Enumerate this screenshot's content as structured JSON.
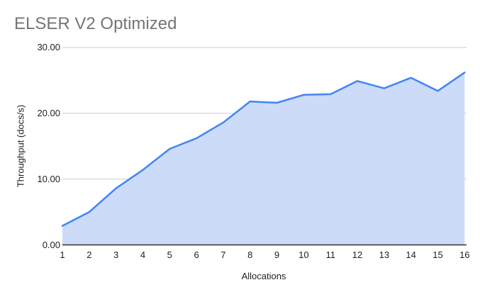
{
  "title": "ELSER V2 Optimized",
  "colors": {
    "line": "#4285f4",
    "area_fill": "#cbdbf8",
    "gridline": "#cccccc",
    "axis_line": "#333333",
    "title_text": "#757575",
    "tick_text": "#202124"
  },
  "chart_data": {
    "type": "area",
    "title": "ELSER V2 Optimized",
    "xlabel": "Allocations",
    "ylabel": "Throughput (docs/s)",
    "x": [
      1,
      2,
      3,
      4,
      5,
      6,
      7,
      8,
      9,
      10,
      11,
      12,
      13,
      14,
      15,
      16
    ],
    "x_tick_labels": [
      "1",
      "2",
      "3",
      "4",
      "5",
      "6",
      "7",
      "8",
      "9",
      "10",
      "11",
      "12",
      "13",
      "14",
      "15",
      "16"
    ],
    "series": [
      {
        "name": "Throughput (docs/s)",
        "values": [
          2.9,
          5.0,
          8.6,
          11.4,
          14.6,
          16.2,
          18.6,
          21.8,
          21.6,
          22.8,
          22.9,
          24.9,
          23.8,
          25.4,
          23.4,
          26.2
        ]
      }
    ],
    "ylim": [
      0,
      30
    ],
    "y_ticks": [
      {
        "v": 0,
        "label": "0.00"
      },
      {
        "v": 10,
        "label": "10.00"
      },
      {
        "v": 20,
        "label": "20.00"
      },
      {
        "v": 30,
        "label": "30.00"
      }
    ],
    "grid": "horizontal-major",
    "legend": "none"
  }
}
